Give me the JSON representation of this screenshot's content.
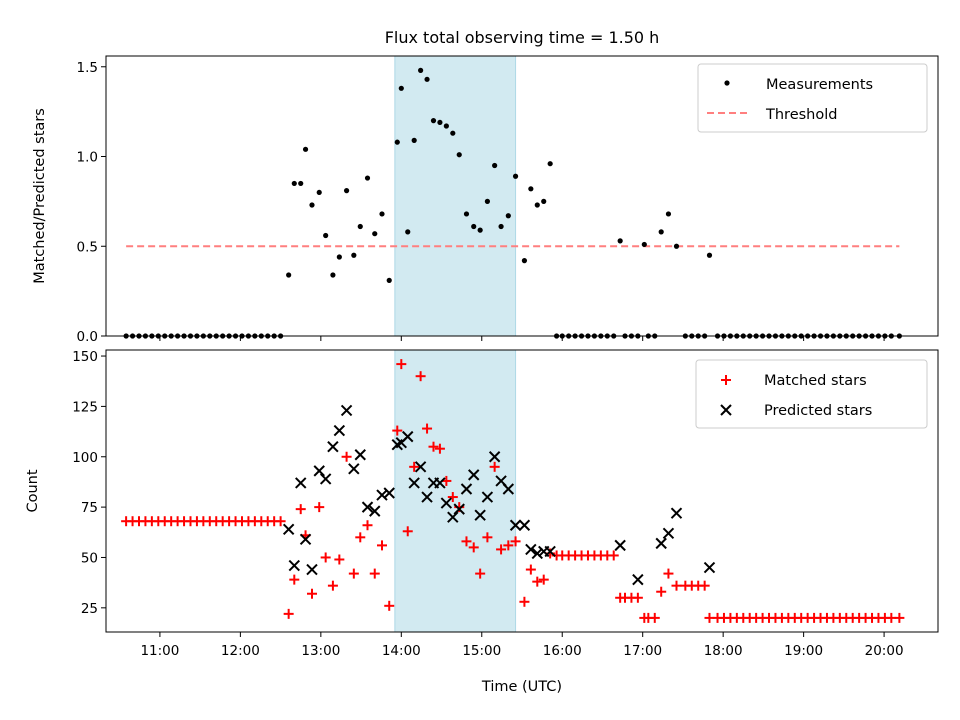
{
  "title": "Flux total observing time = 1.50 h",
  "colors": {
    "measurement": "#000000",
    "threshold": "#ff7f7f",
    "matched": "#ff0000",
    "predicted": "#000000",
    "window": "#add8e6"
  },
  "chart_data": [
    {
      "type": "scatter",
      "ylabel": "Matched/Predicted stars",
      "xlabel": "",
      "xlim": [
        10.33,
        20.67
      ],
      "ylim": [
        0,
        1.56
      ],
      "yticks": [
        "0.0",
        "0.5",
        "1.0",
        "1.5"
      ],
      "grid": false,
      "legend_position": "upper right",
      "legend": [
        "Measurements",
        "Threshold"
      ],
      "observing_window": [
        13.92,
        15.42
      ],
      "threshold": {
        "value": 0.5,
        "x_range": [
          10.58,
          20.19
        ]
      },
      "measurements": {
        "x": [
          10.58,
          10.66,
          10.74,
          10.82,
          10.9,
          10.98,
          11.06,
          11.14,
          11.22,
          11.3,
          11.38,
          11.46,
          11.54,
          11.62,
          11.7,
          11.78,
          11.86,
          11.94,
          12.02,
          12.1,
          12.18,
          12.26,
          12.34,
          12.42,
          12.5,
          12.6,
          12.67,
          12.75,
          12.81,
          12.89,
          12.98,
          13.06,
          13.15,
          13.23,
          13.32,
          13.41,
          13.49,
          13.58,
          13.67,
          13.76,
          13.85,
          13.95,
          14.0,
          14.08,
          14.16,
          14.24,
          14.32,
          14.4,
          14.48,
          14.56,
          14.64,
          14.72,
          14.81,
          14.9,
          14.98,
          15.07,
          15.16,
          15.24,
          15.33,
          15.42,
          15.53,
          15.61,
          15.69,
          15.77,
          15.85,
          15.93,
          16.0,
          16.08,
          16.16,
          16.24,
          16.32,
          16.4,
          16.48,
          16.56,
          16.64,
          16.72,
          16.78,
          16.86,
          16.94,
          17.02,
          17.07,
          17.15,
          17.23,
          17.32,
          17.42,
          17.53,
          17.61,
          17.69,
          17.77,
          17.83,
          17.93,
          18.01,
          18.09,
          18.17,
          18.25,
          18.33,
          18.41,
          18.49,
          18.57,
          18.65,
          18.73,
          18.81,
          18.89,
          18.97,
          19.05,
          19.13,
          19.21,
          19.29,
          19.37,
          19.45,
          19.53,
          19.61,
          19.69,
          19.77,
          19.85,
          19.93,
          20.01,
          20.09,
          20.19
        ],
        "y": [
          0,
          0,
          0,
          0,
          0,
          0,
          0,
          0,
          0,
          0,
          0,
          0,
          0,
          0,
          0,
          0,
          0,
          0,
          0,
          0,
          0,
          0,
          0,
          0,
          0,
          0.34,
          0.85,
          0.85,
          1.04,
          0.73,
          0.8,
          0.56,
          0.34,
          0.44,
          0.81,
          0.45,
          0.61,
          0.88,
          0.57,
          0.68,
          0.31,
          1.08,
          1.38,
          0.58,
          1.09,
          1.48,
          1.43,
          1.2,
          1.19,
          1.17,
          1.13,
          1.01,
          0.68,
          0.61,
          0.59,
          0.75,
          0.95,
          0.61,
          0.67,
          0.89,
          0.42,
          0.82,
          0.73,
          0.75,
          0.96,
          0,
          0,
          0,
          0,
          0,
          0,
          0,
          0,
          0,
          0,
          0.53,
          0,
          0,
          0,
          0.51,
          0,
          0,
          0.58,
          0.68,
          0.5,
          0,
          0,
          0,
          0,
          0.45,
          0,
          0,
          0,
          0,
          0,
          0,
          0,
          0,
          0,
          0,
          0,
          0,
          0,
          0,
          0,
          0,
          0,
          0,
          0,
          0,
          0,
          0,
          0,
          0,
          0,
          0,
          0,
          0,
          0
        ]
      }
    },
    {
      "type": "scatter",
      "ylabel": "Count",
      "xlabel": "Time (UTC)",
      "xlim": [
        10.33,
        20.67
      ],
      "ylim": [
        13,
        153
      ],
      "yticks": [
        "25",
        "50",
        "75",
        "100",
        "125",
        "150"
      ],
      "xticks": [
        "11:00",
        "12:00",
        "13:00",
        "14:00",
        "15:00",
        "16:00",
        "17:00",
        "18:00",
        "19:00",
        "20:00"
      ],
      "grid": false,
      "legend_position": "upper right",
      "legend": [
        "Matched stars",
        "Predicted stars"
      ],
      "observing_window": [
        13.92,
        15.42
      ],
      "series": [
        {
          "name": "Matched stars",
          "marker": "+",
          "x": [
            10.58,
            10.66,
            10.74,
            10.82,
            10.9,
            10.98,
            11.06,
            11.14,
            11.22,
            11.3,
            11.38,
            11.46,
            11.54,
            11.62,
            11.7,
            11.78,
            11.86,
            11.94,
            12.02,
            12.1,
            12.18,
            12.26,
            12.34,
            12.42,
            12.5,
            12.6,
            12.67,
            12.75,
            12.81,
            12.89,
            12.98,
            13.06,
            13.15,
            13.23,
            13.32,
            13.41,
            13.49,
            13.58,
            13.67,
            13.76,
            13.85,
            13.95,
            14.0,
            14.08,
            14.16,
            14.24,
            14.32,
            14.4,
            14.48,
            14.56,
            14.64,
            14.72,
            14.81,
            14.9,
            14.98,
            15.07,
            15.16,
            15.24,
            15.33,
            15.42,
            15.53,
            15.61,
            15.69,
            15.77,
            15.85,
            15.93,
            16.0,
            16.08,
            16.16,
            16.24,
            16.32,
            16.4,
            16.48,
            16.56,
            16.64,
            16.72,
            16.78,
            16.86,
            16.94,
            17.02,
            17.07,
            17.15,
            17.23,
            17.32,
            17.42,
            17.53,
            17.61,
            17.69,
            17.77,
            17.83,
            17.93,
            18.01,
            18.09,
            18.17,
            18.25,
            18.33,
            18.41,
            18.49,
            18.57,
            18.65,
            18.73,
            18.81,
            18.89,
            18.97,
            19.05,
            19.13,
            19.21,
            19.29,
            19.37,
            19.45,
            19.53,
            19.61,
            19.69,
            19.77,
            19.85,
            19.93,
            20.01,
            20.09,
            20.19
          ],
          "y": [
            68,
            68,
            68,
            68,
            68,
            68,
            68,
            68,
            68,
            68,
            68,
            68,
            68,
            68,
            68,
            68,
            68,
            68,
            68,
            68,
            68,
            68,
            68,
            68,
            68,
            22,
            39,
            74,
            61,
            32,
            75,
            50,
            36,
            49,
            100,
            42,
            60,
            66,
            42,
            56,
            26,
            113,
            146,
            63,
            95,
            140,
            114,
            105,
            104,
            88,
            80,
            75,
            58,
            55,
            42,
            60,
            95,
            54,
            56,
            58,
            28,
            44,
            38,
            39,
            52,
            51,
            51,
            51,
            51,
            51,
            51,
            51,
            51,
            51,
            51,
            30,
            30,
            30,
            30,
            20,
            20,
            20,
            33,
            42,
            36,
            36,
            36,
            36,
            36,
            20,
            20,
            20,
            20,
            20,
            20,
            20,
            20,
            20,
            20,
            20,
            20,
            20,
            20,
            20,
            20,
            20,
            20,
            20,
            20,
            20,
            20,
            20,
            20,
            20,
            20,
            20,
            20,
            20,
            20
          ]
        },
        {
          "name": "Predicted stars",
          "marker": "x",
          "x": [
            12.6,
            12.67,
            12.75,
            12.81,
            12.89,
            12.98,
            13.06,
            13.15,
            13.23,
            13.32,
            13.41,
            13.49,
            13.58,
            13.67,
            13.76,
            13.85,
            13.95,
            14.0,
            14.08,
            14.16,
            14.24,
            14.32,
            14.4,
            14.48,
            14.56,
            14.64,
            14.72,
            14.81,
            14.9,
            14.98,
            15.07,
            15.16,
            15.24,
            15.33,
            15.42,
            15.53,
            15.61,
            15.69,
            15.77,
            15.85,
            16.72,
            16.94,
            17.23,
            17.32,
            17.42,
            17.83
          ],
          "y": [
            64,
            46,
            87,
            59,
            44,
            93,
            89,
            105,
            113,
            123,
            94,
            101,
            75,
            73,
            81,
            82,
            106,
            107,
            110,
            87,
            95,
            80,
            87,
            87,
            77,
            70,
            74,
            84,
            91,
            71,
            80,
            100,
            88,
            84,
            66,
            66,
            54,
            52,
            53,
            53,
            56,
            39,
            57,
            62,
            72,
            45
          ]
        }
      ]
    }
  ]
}
